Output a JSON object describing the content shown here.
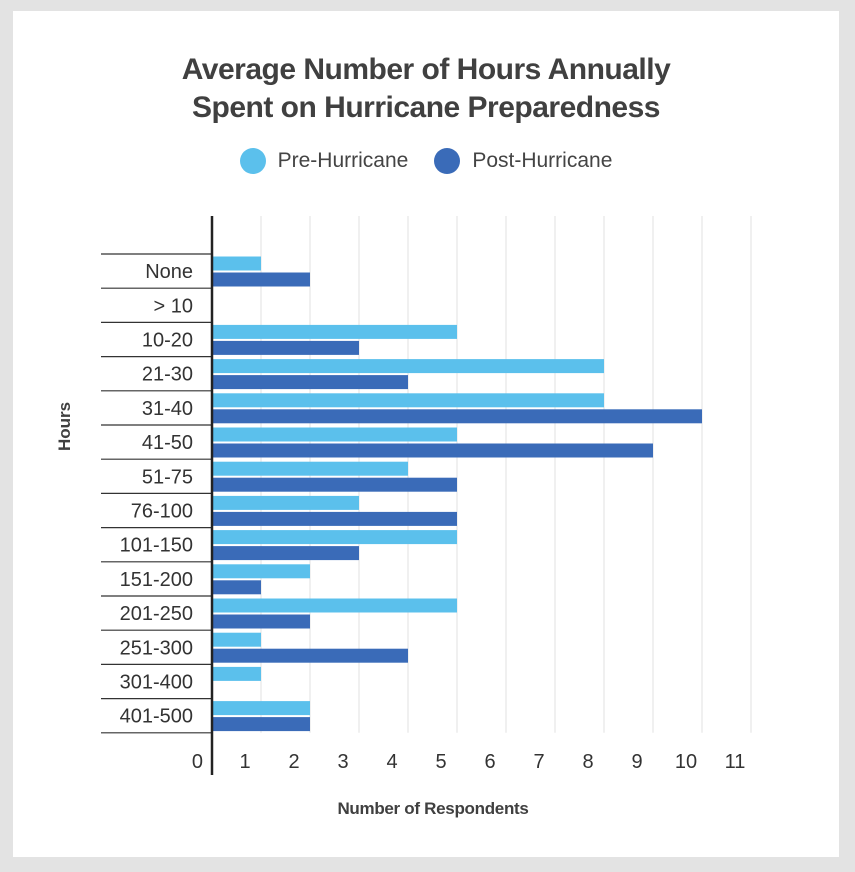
{
  "chart_data": {
    "type": "bar",
    "orientation": "horizontal",
    "title_line1": "Average Number of Hours Annually",
    "title_line2": "Spent on Hurricane Preparedness",
    "xlabel": "Number of Respondents",
    "ylabel": "Hours",
    "xlim": [
      0,
      11
    ],
    "x_ticks": [
      "0",
      "1",
      "2",
      "3",
      "4",
      "5",
      "6",
      "7",
      "8",
      "9",
      "10",
      "11"
    ],
    "grid": "vertical",
    "legend_position": "top",
    "categories": [
      "None",
      "> 10",
      "10-20",
      "21-30",
      "31-40",
      "41-50",
      "51-75",
      "76-100",
      "101-150",
      "151-200",
      "201-250",
      "251-300",
      "301-400",
      "401-500"
    ],
    "series": [
      {
        "name": "Pre-Hurricane",
        "color": "#5bc0ec",
        "values": [
          1,
          0,
          5,
          8,
          8,
          5,
          4,
          3,
          5,
          2,
          5,
          1,
          1,
          2
        ]
      },
      {
        "name": "Post-Hurricane",
        "color": "#3a6bb8",
        "values": [
          2,
          0,
          3,
          4,
          10,
          9,
          5,
          5,
          3,
          1,
          2,
          4,
          0,
          2
        ]
      }
    ]
  }
}
